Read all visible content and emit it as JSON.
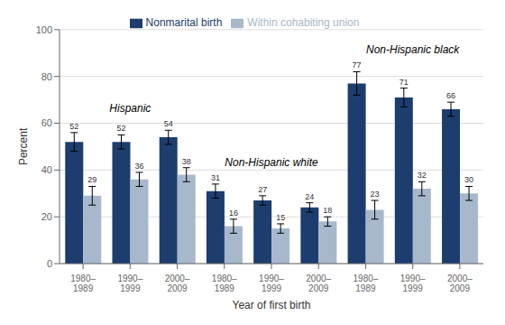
{
  "chart_data": {
    "type": "bar",
    "xlabel": "Year of first birth",
    "ylabel": "Percent",
    "categories": [
      "1980–\n1989",
      "1990–\n1999",
      "2000–\n2009",
      "1980–\n1989",
      "1990–\n1999",
      "2000–\n2009",
      "1980–\n1989",
      "1990–\n1999",
      "2000–\n2009"
    ],
    "series": [
      {
        "name": "Nonmarital birth",
        "color": "#1c3d6e",
        "values": [
          52,
          52,
          54,
          31,
          27,
          24,
          77,
          71,
          66
        ],
        "errors": [
          4,
          3,
          3,
          3,
          2,
          2,
          5,
          4,
          3
        ]
      },
      {
        "name": "Within cohabiting union",
        "color": "#a8b8cc",
        "values": [
          29,
          36,
          38,
          16,
          15,
          18,
          23,
          32,
          30
        ],
        "errors": [
          4,
          3,
          3,
          3,
          2,
          2,
          4,
          3,
          3
        ]
      }
    ],
    "annotations": [
      "Hispanic",
      "Non-Hispanic white",
      "Non-Hispanic black"
    ],
    "ylim": [
      0,
      100
    ],
    "yticks": [
      0,
      20,
      40,
      60,
      80,
      100
    ],
    "grid": true,
    "legend": "top",
    "data_labels": true
  }
}
